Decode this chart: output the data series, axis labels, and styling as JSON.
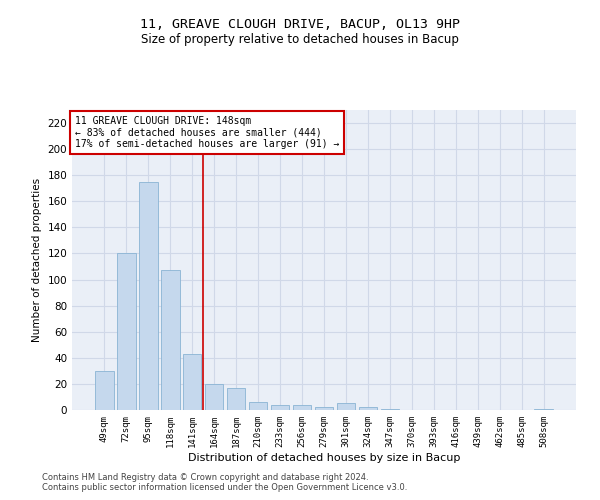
{
  "title1": "11, GREAVE CLOUGH DRIVE, BACUP, OL13 9HP",
  "title2": "Size of property relative to detached houses in Bacup",
  "xlabel": "Distribution of detached houses by size in Bacup",
  "ylabel": "Number of detached properties",
  "categories": [
    "49sqm",
    "72sqm",
    "95sqm",
    "118sqm",
    "141sqm",
    "164sqm",
    "187sqm",
    "210sqm",
    "233sqm",
    "256sqm",
    "279sqm",
    "301sqm",
    "324sqm",
    "347sqm",
    "370sqm",
    "393sqm",
    "416sqm",
    "439sqm",
    "462sqm",
    "485sqm",
    "508sqm"
  ],
  "values": [
    30,
    120,
    175,
    107,
    43,
    20,
    17,
    6,
    4,
    4,
    2,
    5,
    2,
    1,
    0,
    0,
    0,
    0,
    0,
    0,
    1
  ],
  "bar_color": "#c5d8ed",
  "bar_edge_color": "#8ab4d4",
  "vline_color": "#cc0000",
  "annotation_text": "11 GREAVE CLOUGH DRIVE: 148sqm\n← 83% of detached houses are smaller (444)\n17% of semi-detached houses are larger (91) →",
  "annotation_box_color": "white",
  "annotation_box_edge": "#cc0000",
  "ylim": [
    0,
    230
  ],
  "yticks": [
    0,
    20,
    40,
    60,
    80,
    100,
    120,
    140,
    160,
    180,
    200,
    220
  ],
  "grid_color": "#d0d8e8",
  "background_color": "#eaeff7",
  "footer1": "Contains HM Land Registry data © Crown copyright and database right 2024.",
  "footer2": "Contains public sector information licensed under the Open Government Licence v3.0."
}
